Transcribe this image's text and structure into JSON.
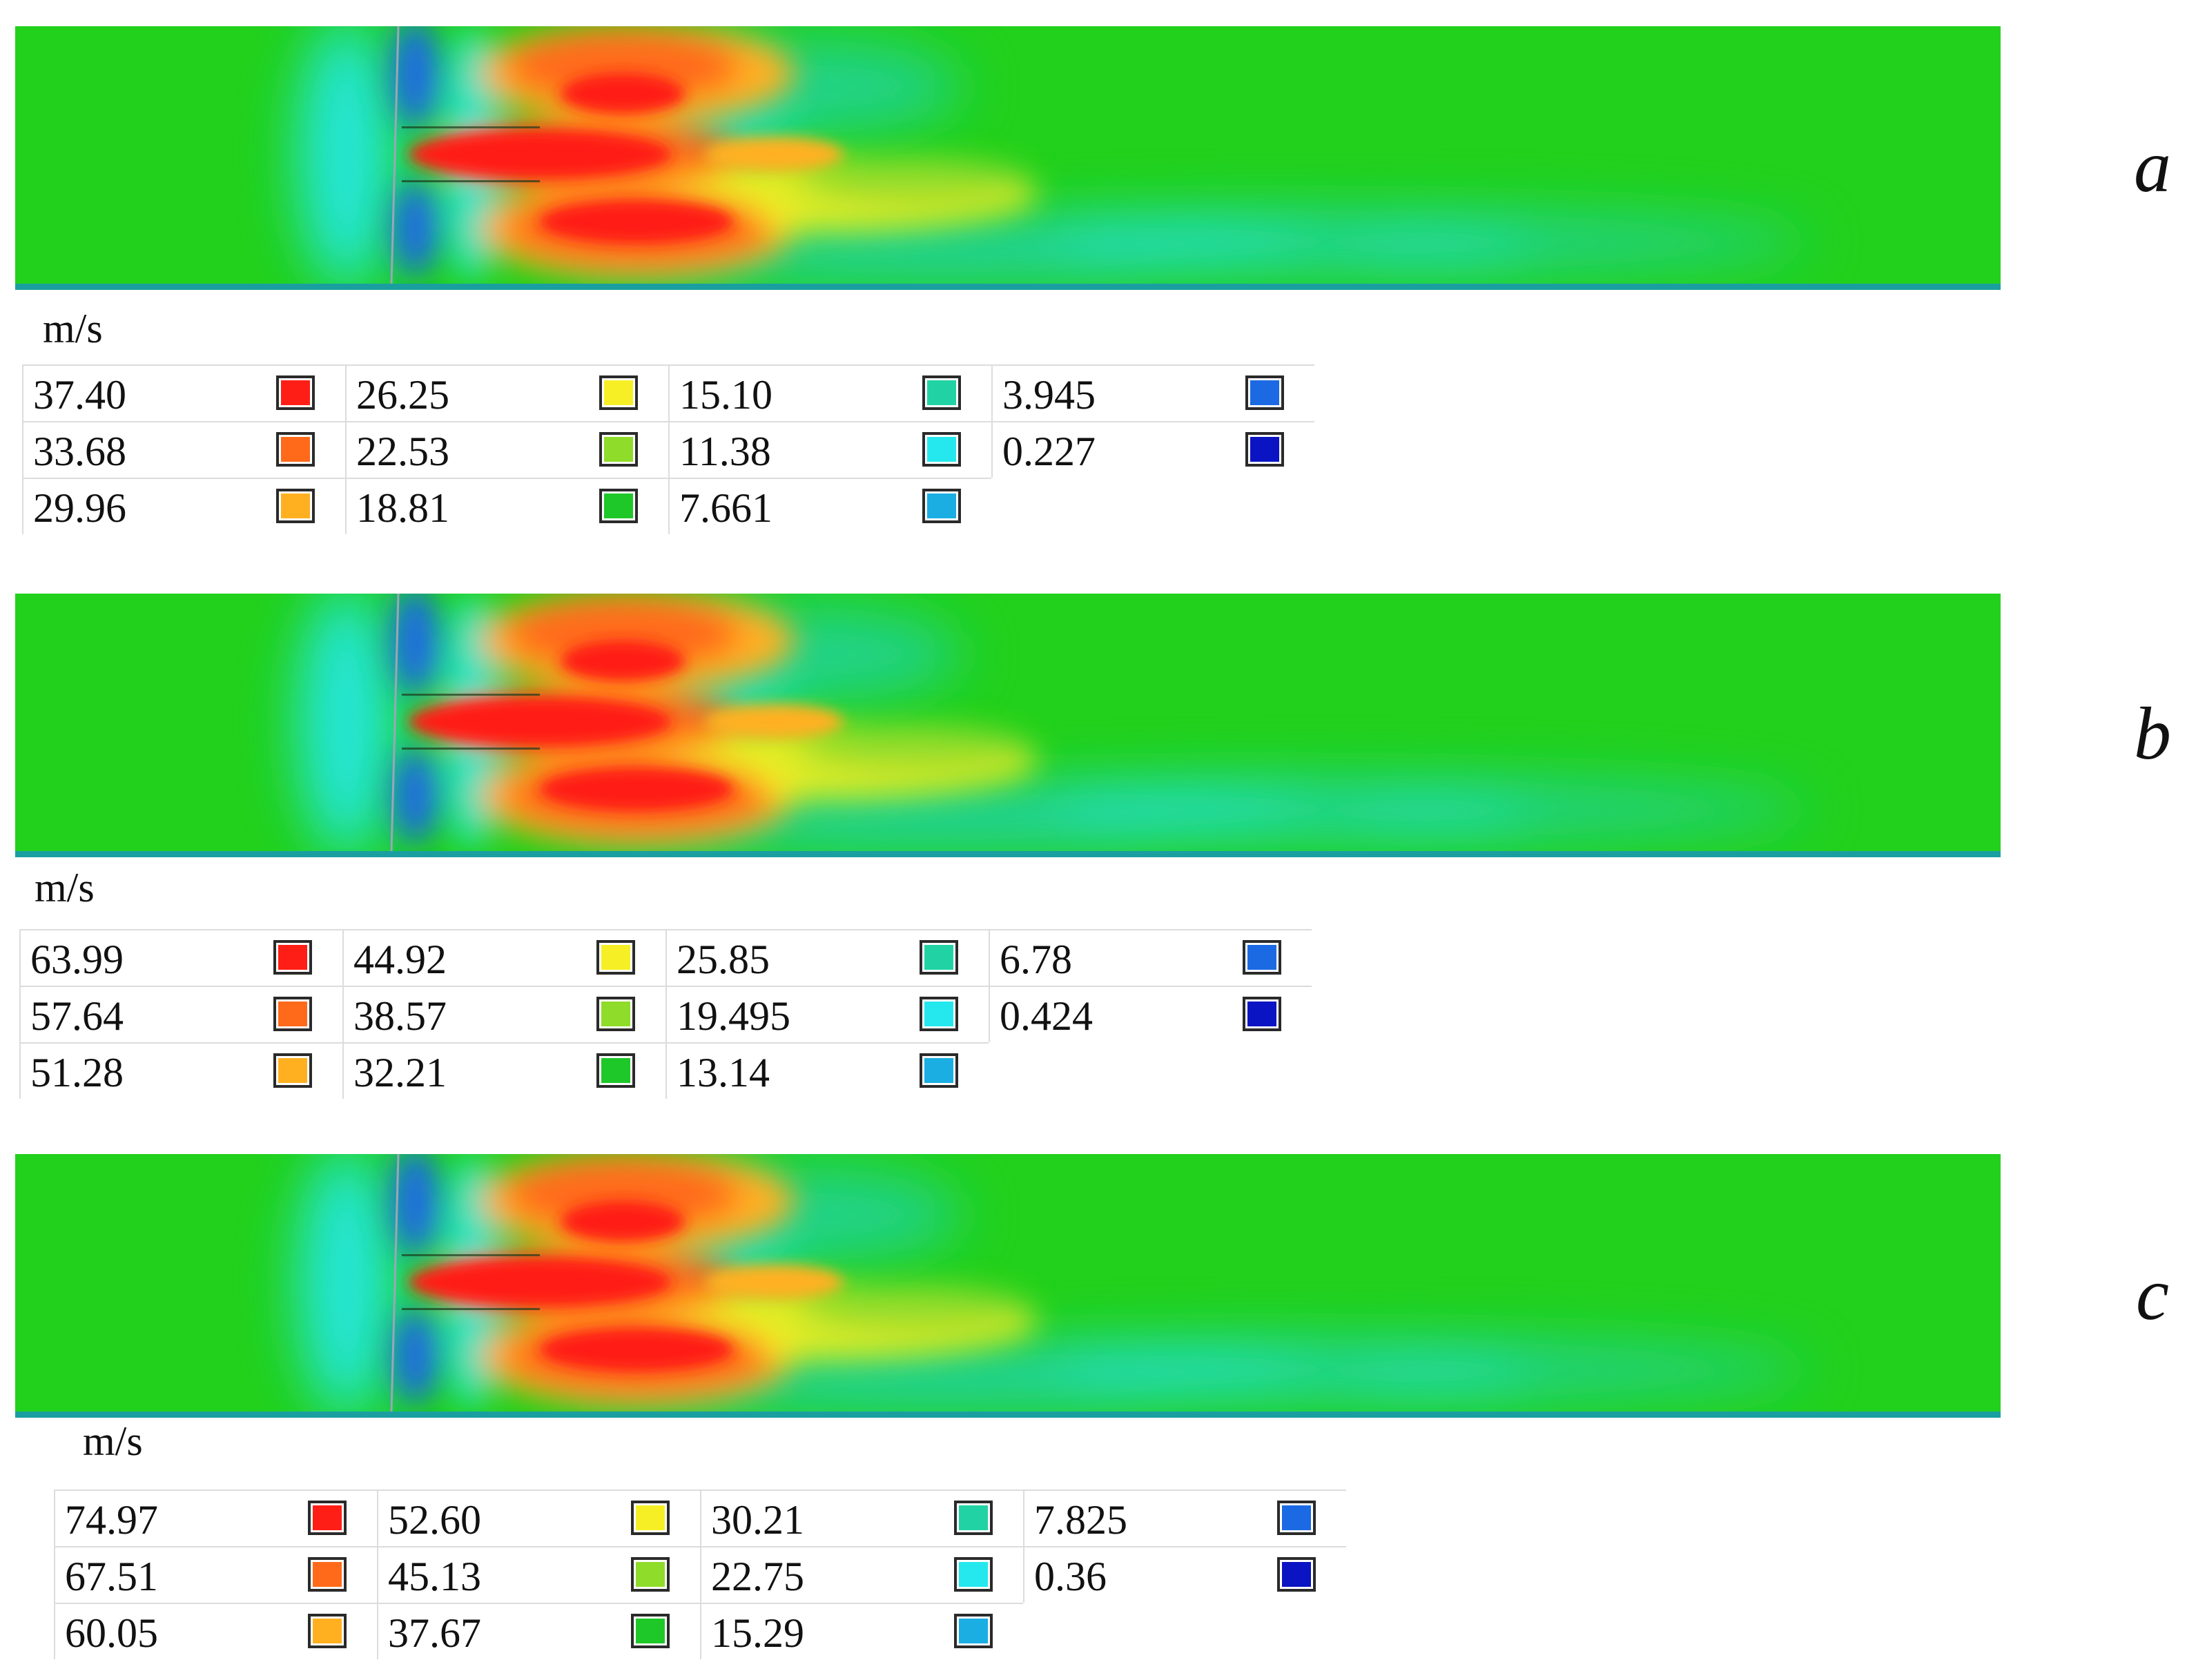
{
  "colors": {
    "domain": "#22d11c",
    "red": "#ff1e16",
    "orange": "#ff6a1a",
    "light_orange": "#ffb020",
    "yellow": "#f6ef26",
    "yellow_green": "#8fdc2a",
    "green": "#1ec828",
    "teal": "#21d3a4",
    "cyan": "#24e8ee",
    "light_blue": "#1aaee3",
    "blue": "#1b6ae3",
    "dark_blue": "#0a14c3"
  },
  "panels": [
    {
      "letter": "a",
      "unit": "m/s",
      "legend": [
        {
          "value": "37.40",
          "color": "red"
        },
        {
          "value": "33.68",
          "color": "orange"
        },
        {
          "value": "29.96",
          "color": "light_orange"
        },
        {
          "value": "26.25",
          "color": "yellow"
        },
        {
          "value": "22.53",
          "color": "yellow_green"
        },
        {
          "value": "18.81",
          "color": "green"
        },
        {
          "value": "15.10",
          "color": "teal"
        },
        {
          "value": "11.38",
          "color": "cyan"
        },
        {
          "value": "7.661",
          "color": "light_blue"
        },
        {
          "value": "3.945",
          "color": "blue"
        },
        {
          "value": "0.227",
          "color": "dark_blue"
        }
      ]
    },
    {
      "letter": "b",
      "unit": "m/s",
      "legend": [
        {
          "value": "63.99",
          "color": "red"
        },
        {
          "value": "57.64",
          "color": "orange"
        },
        {
          "value": "51.28",
          "color": "light_orange"
        },
        {
          "value": "44.92",
          "color": "yellow"
        },
        {
          "value": "38.57",
          "color": "yellow_green"
        },
        {
          "value": "32.21",
          "color": "green"
        },
        {
          "value": "25.85",
          "color": "teal"
        },
        {
          "value": "19.495",
          "color": "cyan"
        },
        {
          "value": "13.14",
          "color": "light_blue"
        },
        {
          "value": "6.78",
          "color": "blue"
        },
        {
          "value": "0.424",
          "color": "dark_blue"
        }
      ]
    },
    {
      "letter": "c",
      "unit": "m/s",
      "legend": [
        {
          "value": "74.97",
          "color": "red"
        },
        {
          "value": "67.51",
          "color": "orange"
        },
        {
          "value": "60.05",
          "color": "light_orange"
        },
        {
          "value": "52.60",
          "color": "yellow"
        },
        {
          "value": "45.13",
          "color": "yellow_green"
        },
        {
          "value": "37.67",
          "color": "green"
        },
        {
          "value": "30.21",
          "color": "teal"
        },
        {
          "value": "22.75",
          "color": "cyan"
        },
        {
          "value": "15.29",
          "color": "light_blue"
        },
        {
          "value": "7.825",
          "color": "blue"
        },
        {
          "value": "0.36",
          "color": "dark_blue"
        }
      ]
    }
  ]
}
